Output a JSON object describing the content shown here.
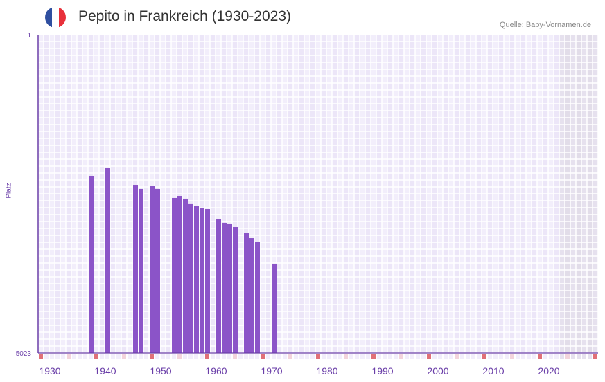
{
  "header": {
    "title": "Pepito in Frankreich (1930-2023)",
    "source": "Quelle: Baby-Vornamen.de",
    "flag_colors": [
      "#2f4fa0",
      "#ffffff",
      "#e8303a"
    ]
  },
  "chart_data": {
    "type": "bar",
    "title": "Pepito in Frankreich (1930-2023)",
    "xlabel": "",
    "ylabel": "Platz",
    "ylim": [
      5023,
      1
    ],
    "y_ticks": [
      "1",
      "5023"
    ],
    "x_range": [
      1930,
      2030
    ],
    "x_ticks": [
      "1930",
      "1940",
      "1950",
      "1960",
      "1970",
      "1980",
      "1990",
      "2000",
      "2010",
      "2020"
    ],
    "x": [
      1939,
      1942,
      1947,
      1948,
      1950,
      1951,
      1954,
      1955,
      1956,
      1957,
      1958,
      1959,
      1960,
      1962,
      1963,
      1964,
      1965,
      1967,
      1968,
      1969,
      1972
    ],
    "values": [
      2228,
      2108,
      2381,
      2435,
      2392,
      2435,
      2577,
      2545,
      2588,
      2675,
      2708,
      2730,
      2752,
      2905,
      2970,
      2981,
      3036,
      3134,
      3211,
      3276,
      3614
    ],
    "data_end_year": 2023,
    "colors": {
      "bar": "#8b54c8",
      "axis": "#6a3ea8",
      "decade_marker": "#e07078",
      "half_decade_marker": "#f3d4dc"
    }
  }
}
